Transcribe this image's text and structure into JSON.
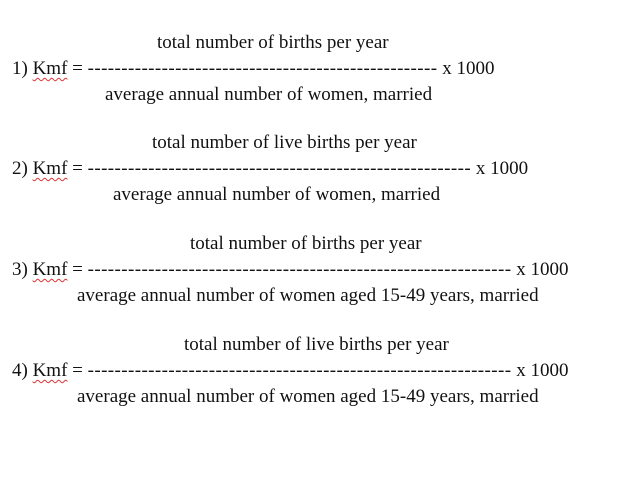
{
  "formulas": [
    {
      "index_label": "1)",
      "symbol": "Kmf",
      "equals": "=",
      "numerator": "total number of births per year",
      "dashes": "----------------------------------------------------",
      "multiplier": "x 1000",
      "denominator": "average annual number of women, married"
    },
    {
      "index_label": "2)",
      "symbol": "Kmf",
      "equals": "=",
      "numerator": "total number of live births per year",
      "dashes": "---------------------------------------------------------",
      "multiplier": "x 1000",
      "denominator": "average annual number of women, married"
    },
    {
      "index_label": "3)",
      "symbol": "Kmf",
      "equals": "=",
      "numerator": "total number of births per year",
      "dashes": "---------------------------------------------------------------",
      "multiplier": "x 1000",
      "denominator": "average annual number of women aged 15-49 years, married"
    },
    {
      "index_label": "4)",
      "symbol": "Kmf",
      "equals": "=",
      "numerator": "total number of live births per year",
      "dashes": "---------------------------------------------------------------",
      "multiplier": "x 1000",
      "denominator": "average annual number of women aged 15-49 years, married"
    }
  ]
}
